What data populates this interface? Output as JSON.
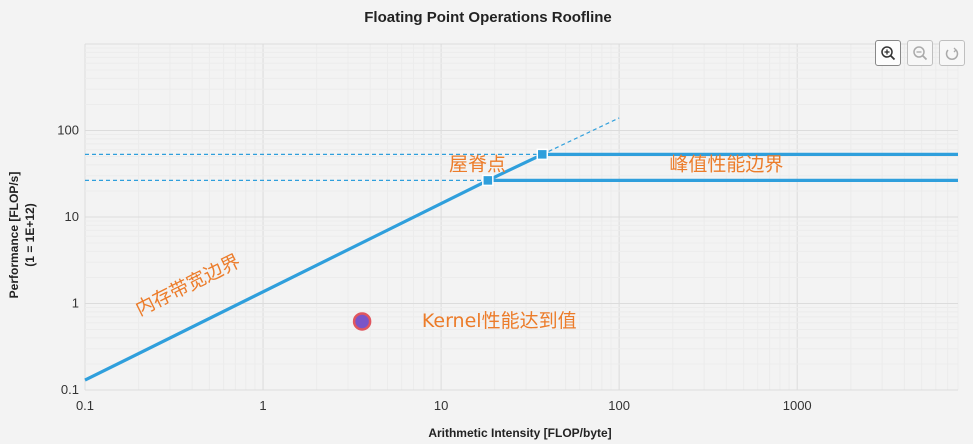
{
  "chart_data": {
    "type": "line",
    "title": "Floating Point Operations Roofline",
    "xlabel": "Arithmetic Intensity [FLOP/byte]",
    "ylabel_line1": "Performance [FLOP/s]",
    "ylabel_line2": "(1 = 1E+12)",
    "x_scale": "log",
    "y_scale": "log",
    "xlim": [
      0.1,
      8000
    ],
    "ylim": [
      0.1,
      1000
    ],
    "x_ticks": [
      0.1,
      1,
      10,
      100,
      1000
    ],
    "x_tick_labels": [
      "0.1",
      "1",
      "10",
      "100",
      "1000"
    ],
    "y_ticks": [
      0.1,
      1,
      10,
      100
    ],
    "y_tick_labels": [
      "0.1",
      "1",
      "10",
      "100"
    ],
    "grid": true,
    "series": [
      {
        "style": "solid",
        "color": "#2f9fdc",
        "points": [
          [
            0.1,
            0.13
          ],
          [
            18.3,
            26.5
          ],
          [
            8000,
            26.5
          ]
        ],
        "markers": [
          [
            18.3,
            26.5
          ]
        ]
      },
      {
        "style": "solid",
        "color": "#2f9fdc",
        "points": [
          [
            18.3,
            26.5
          ],
          [
            37,
            53
          ],
          [
            8000,
            53
          ]
        ],
        "markers": [
          [
            37,
            53
          ]
        ]
      },
      {
        "style": "dashed",
        "color": "#2f9fdc",
        "points": [
          [
            37,
            53
          ],
          [
            100,
            140
          ]
        ]
      },
      {
        "style": "dashed",
        "color": "#2f9fdc",
        "points": [
          [
            0.1,
            53
          ],
          [
            37,
            53
          ]
        ]
      },
      {
        "style": "dashed",
        "color": "#2f9fdc",
        "points": [
          [
            0.1,
            26.5
          ],
          [
            18.3,
            26.5
          ]
        ]
      }
    ],
    "kernel_point": {
      "x": 3.6,
      "y": 0.62,
      "fill": "#7a55c8",
      "stroke": "#e0565f"
    },
    "annotations": [
      {
        "text": "内存带宽边界",
        "x": 0.38,
        "y": 1.6,
        "rotate_along": "memory-roof"
      },
      {
        "text": "屋脊点",
        "x": 16,
        "y": 40
      },
      {
        "text": "峰值性能边界",
        "x": 400,
        "y": 40
      },
      {
        "text": "Kernel性能达到值",
        "x": 7.8,
        "y": 0.62,
        "anchor": "start"
      }
    ],
    "annotation_color": "#ec7c2a"
  },
  "toolbar": {
    "buttons": [
      "zoom-in-icon",
      "zoom-out-icon",
      "reset-icon"
    ]
  }
}
